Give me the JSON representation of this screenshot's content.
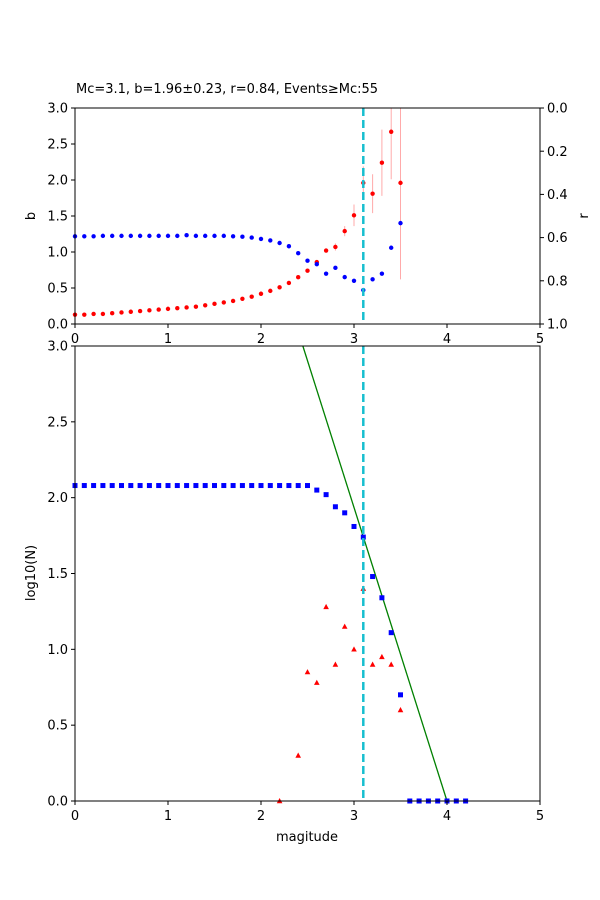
{
  "figure": {
    "title": "Mc=3.1, b=1.96±0.23, r=0.84, Events≥Mc:55"
  },
  "colors": {
    "b_series": "#ff0000",
    "r_series": "#0000ff",
    "errorbar": "#ffaaaa",
    "mc_line": "#17becf",
    "fit_line": "#008000",
    "cumulative": "#0000ff",
    "noncumulative": "#ff0000"
  },
  "chart_data": [
    {
      "type": "scatter",
      "ylabel_left": "b",
      "ylabel_right": "r",
      "xlim": [
        0,
        5
      ],
      "ylim_left": [
        0,
        3
      ],
      "ylim_right": [
        1,
        0
      ],
      "xticks": [
        "0",
        "1",
        "2",
        "3",
        "4",
        "5"
      ],
      "yticks_left": [
        "0.0",
        "0.5",
        "1.0",
        "1.5",
        "2.0",
        "2.5",
        "3.0"
      ],
      "yticks_right": [
        "0.0",
        "0.2",
        "0.4",
        "0.6",
        "0.8",
        "1.0"
      ],
      "mc": 3.1,
      "series": [
        {
          "axis": "left",
          "x": [
            0.0,
            0.1,
            0.2,
            0.3,
            0.4,
            0.5,
            0.6,
            0.7,
            0.8,
            0.9,
            1.0,
            1.1,
            1.2,
            1.3,
            1.4,
            1.5,
            1.6,
            1.7,
            1.8,
            1.9,
            2.0,
            2.1,
            2.2,
            2.3,
            2.4,
            2.5,
            2.6,
            2.7,
            2.8,
            2.9,
            3.0,
            3.1,
            3.2,
            3.3,
            3.4,
            3.5
          ],
          "values": [
            0.13,
            0.13,
            0.14,
            0.14,
            0.15,
            0.16,
            0.17,
            0.18,
            0.19,
            0.2,
            0.21,
            0.22,
            0.23,
            0.24,
            0.26,
            0.28,
            0.3,
            0.32,
            0.35,
            0.38,
            0.42,
            0.46,
            0.51,
            0.57,
            0.65,
            0.74,
            0.86,
            1.02,
            1.07,
            1.29,
            1.51,
            1.96,
            1.81,
            2.24,
            2.67,
            1.96
          ],
          "errors": [
            0,
            0,
            0,
            0,
            0,
            0,
            0,
            0,
            0,
            0,
            0,
            0,
            0,
            0,
            0,
            0,
            0,
            0,
            0,
            0,
            0,
            0,
            0,
            0,
            0,
            0,
            0,
            0.03,
            0.05,
            0.07,
            0.15,
            0.23,
            0.27,
            0.46,
            0.66,
            1.34
          ]
        },
        {
          "axis": "right",
          "x": [
            0.0,
            0.1,
            0.2,
            0.3,
            0.4,
            0.5,
            0.6,
            0.7,
            0.8,
            0.9,
            1.0,
            1.1,
            1.2,
            1.3,
            1.4,
            1.5,
            1.6,
            1.7,
            1.8,
            1.9,
            2.0,
            2.1,
            2.2,
            2.3,
            2.4,
            2.5,
            2.6,
            2.7,
            2.8,
            2.9,
            3.0,
            3.1,
            3.2,
            3.3,
            3.4,
            3.5
          ],
          "values": [
            0.594,
            0.594,
            0.594,
            0.592,
            0.592,
            0.592,
            0.592,
            0.592,
            0.592,
            0.592,
            0.592,
            0.592,
            0.589,
            0.592,
            0.592,
            0.592,
            0.592,
            0.594,
            0.596,
            0.6,
            0.606,
            0.613,
            0.625,
            0.64,
            0.672,
            0.707,
            0.723,
            0.767,
            0.74,
            0.783,
            0.8,
            0.843,
            0.793,
            0.767,
            0.647,
            0.533
          ]
        }
      ]
    },
    {
      "type": "scatter",
      "xlabel": "magitude",
      "ylabel": "log10(N)",
      "xlim": [
        0,
        5
      ],
      "ylim": [
        0,
        3
      ],
      "xticks": [
        "0",
        "1",
        "2",
        "3",
        "4",
        "5"
      ],
      "yticks": [
        "0.0",
        "0.5",
        "1.0",
        "1.5",
        "2.0",
        "2.5",
        "3.0"
      ],
      "mc": 3.1,
      "fit_line": {
        "x": [
          2.45,
          4.0
        ],
        "y": [
          3.0,
          0.0
        ]
      },
      "series": [
        {
          "marker": "square",
          "x": [
            0.0,
            0.1,
            0.2,
            0.3,
            0.4,
            0.5,
            0.6,
            0.7,
            0.8,
            0.9,
            1.0,
            1.1,
            1.2,
            1.3,
            1.4,
            1.5,
            1.6,
            1.7,
            1.8,
            1.9,
            2.0,
            2.1,
            2.2,
            2.3,
            2.4,
            2.5,
            2.6,
            2.7,
            2.8,
            2.9,
            3.0,
            3.1,
            3.2,
            3.3,
            3.4,
            3.5,
            3.6,
            3.7,
            3.8,
            3.9,
            4.0,
            4.1,
            4.2
          ],
          "values": [
            2.08,
            2.08,
            2.08,
            2.08,
            2.08,
            2.08,
            2.08,
            2.08,
            2.08,
            2.08,
            2.08,
            2.08,
            2.08,
            2.08,
            2.08,
            2.08,
            2.08,
            2.08,
            2.08,
            2.08,
            2.08,
            2.08,
            2.08,
            2.08,
            2.08,
            2.08,
            2.05,
            2.02,
            1.94,
            1.9,
            1.81,
            1.74,
            1.48,
            1.34,
            1.11,
            0.7,
            0,
            0,
            0,
            0,
            0,
            0,
            0
          ]
        },
        {
          "marker": "triangle",
          "x": [
            2.2,
            2.4,
            2.5,
            2.6,
            2.7,
            2.8,
            2.9,
            3.0,
            3.1,
            3.2,
            3.3,
            3.4,
            3.5
          ],
          "values": [
            0.0,
            0.3,
            0.85,
            0.78,
            1.28,
            0.9,
            1.15,
            1.0,
            1.4,
            0.9,
            0.95,
            0.9,
            0.6
          ]
        }
      ]
    }
  ]
}
